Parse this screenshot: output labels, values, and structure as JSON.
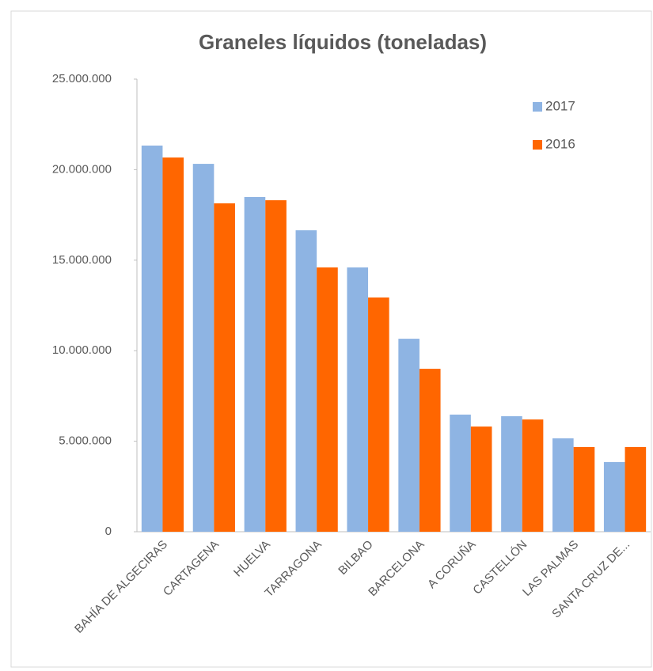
{
  "chart_data": {
    "type": "bar",
    "title": "Graneles líquidos (toneladas)",
    "categories": [
      "BAHÍA DE ALGECIRAS",
      "CARTAGENA",
      "HUELVA",
      "TARRAGONA",
      "BILBAO",
      "BARCELONA",
      "A CORUÑA",
      "CASTELLÓN",
      "LAS PALMAS",
      "SANTA CRUZ DE..."
    ],
    "series": [
      {
        "name": "2017",
        "color": "#8eb4e3",
        "values": [
          21330000,
          20320000,
          18490000,
          16650000,
          14600000,
          10660000,
          6470000,
          6380000,
          5160000,
          3850000
        ]
      },
      {
        "name": "2016",
        "color": "#ff6600",
        "values": [
          20670000,
          18140000,
          18310000,
          14600000,
          12940000,
          9000000,
          5810000,
          6200000,
          4680000,
          4680000
        ]
      }
    ],
    "ylim": [
      0,
      25000000
    ],
    "yticks": [
      0,
      {
        "value": 5000000,
        "label": "5.000.000"
      },
      {
        "value": 10000000,
        "label": "10.000.000"
      },
      {
        "value": 15000000,
        "label": "15.000.000"
      },
      {
        "value": 20000000,
        "label": "20.000.000"
      },
      {
        "value": 25000000,
        "label": "25.000.000"
      }
    ],
    "legend": "top-right"
  }
}
